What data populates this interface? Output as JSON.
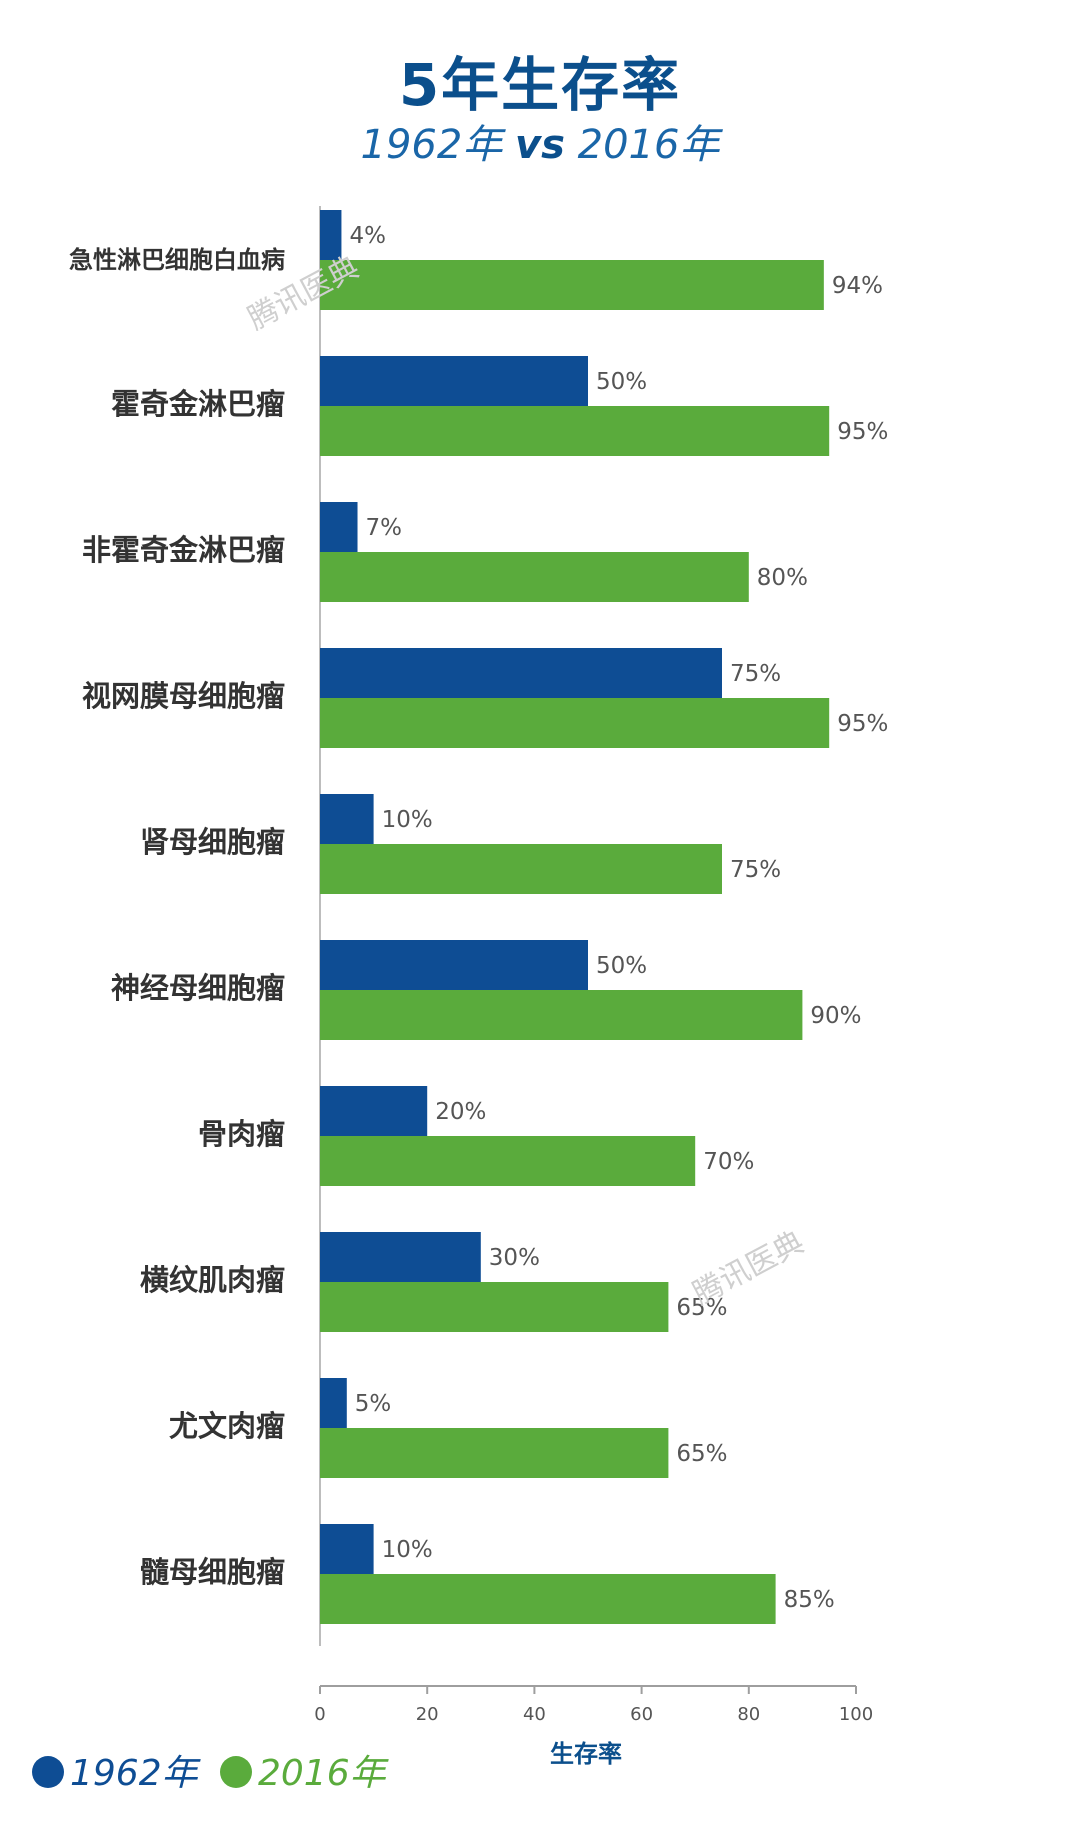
{
  "header": {
    "title": "5年生存率",
    "subtitle_left": "1962年",
    "subtitle_vs": "vs",
    "subtitle_right": "2016年"
  },
  "watermark": "腾讯医典",
  "colors": {
    "series_1962": "#0e4d94",
    "series_2016": "#5aab3c",
    "title": "#0b4f8c"
  },
  "chart_data": {
    "type": "bar",
    "orientation": "horizontal",
    "title": "5年生存率",
    "subtitle": "1962年 vs 2016年",
    "xlabel": "生存率",
    "ylabel": "",
    "xlim": [
      0,
      100
    ],
    "xticks": [
      0,
      20,
      40,
      60,
      80,
      100
    ],
    "grid": false,
    "legend": "bottom-left",
    "categories": [
      "急性淋巴细胞白血病",
      "霍奇金淋巴瘤",
      "非霍奇金淋巴瘤",
      "视网膜母细胞瘤",
      "肾母细胞瘤",
      "神经母细胞瘤",
      "骨肉瘤",
      "横纹肌肉瘤",
      "尤文肉瘤",
      "髓母细胞瘤"
    ],
    "series": [
      {
        "name": "1962年",
        "color": "#0e4d94",
        "values": [
          4,
          50,
          7,
          75,
          10,
          50,
          20,
          30,
          5,
          10
        ]
      },
      {
        "name": "2016年",
        "color": "#5aab3c",
        "values": [
          94,
          95,
          80,
          95,
          75,
          90,
          70,
          65,
          65,
          85
        ]
      }
    ],
    "value_suffix": "%"
  }
}
